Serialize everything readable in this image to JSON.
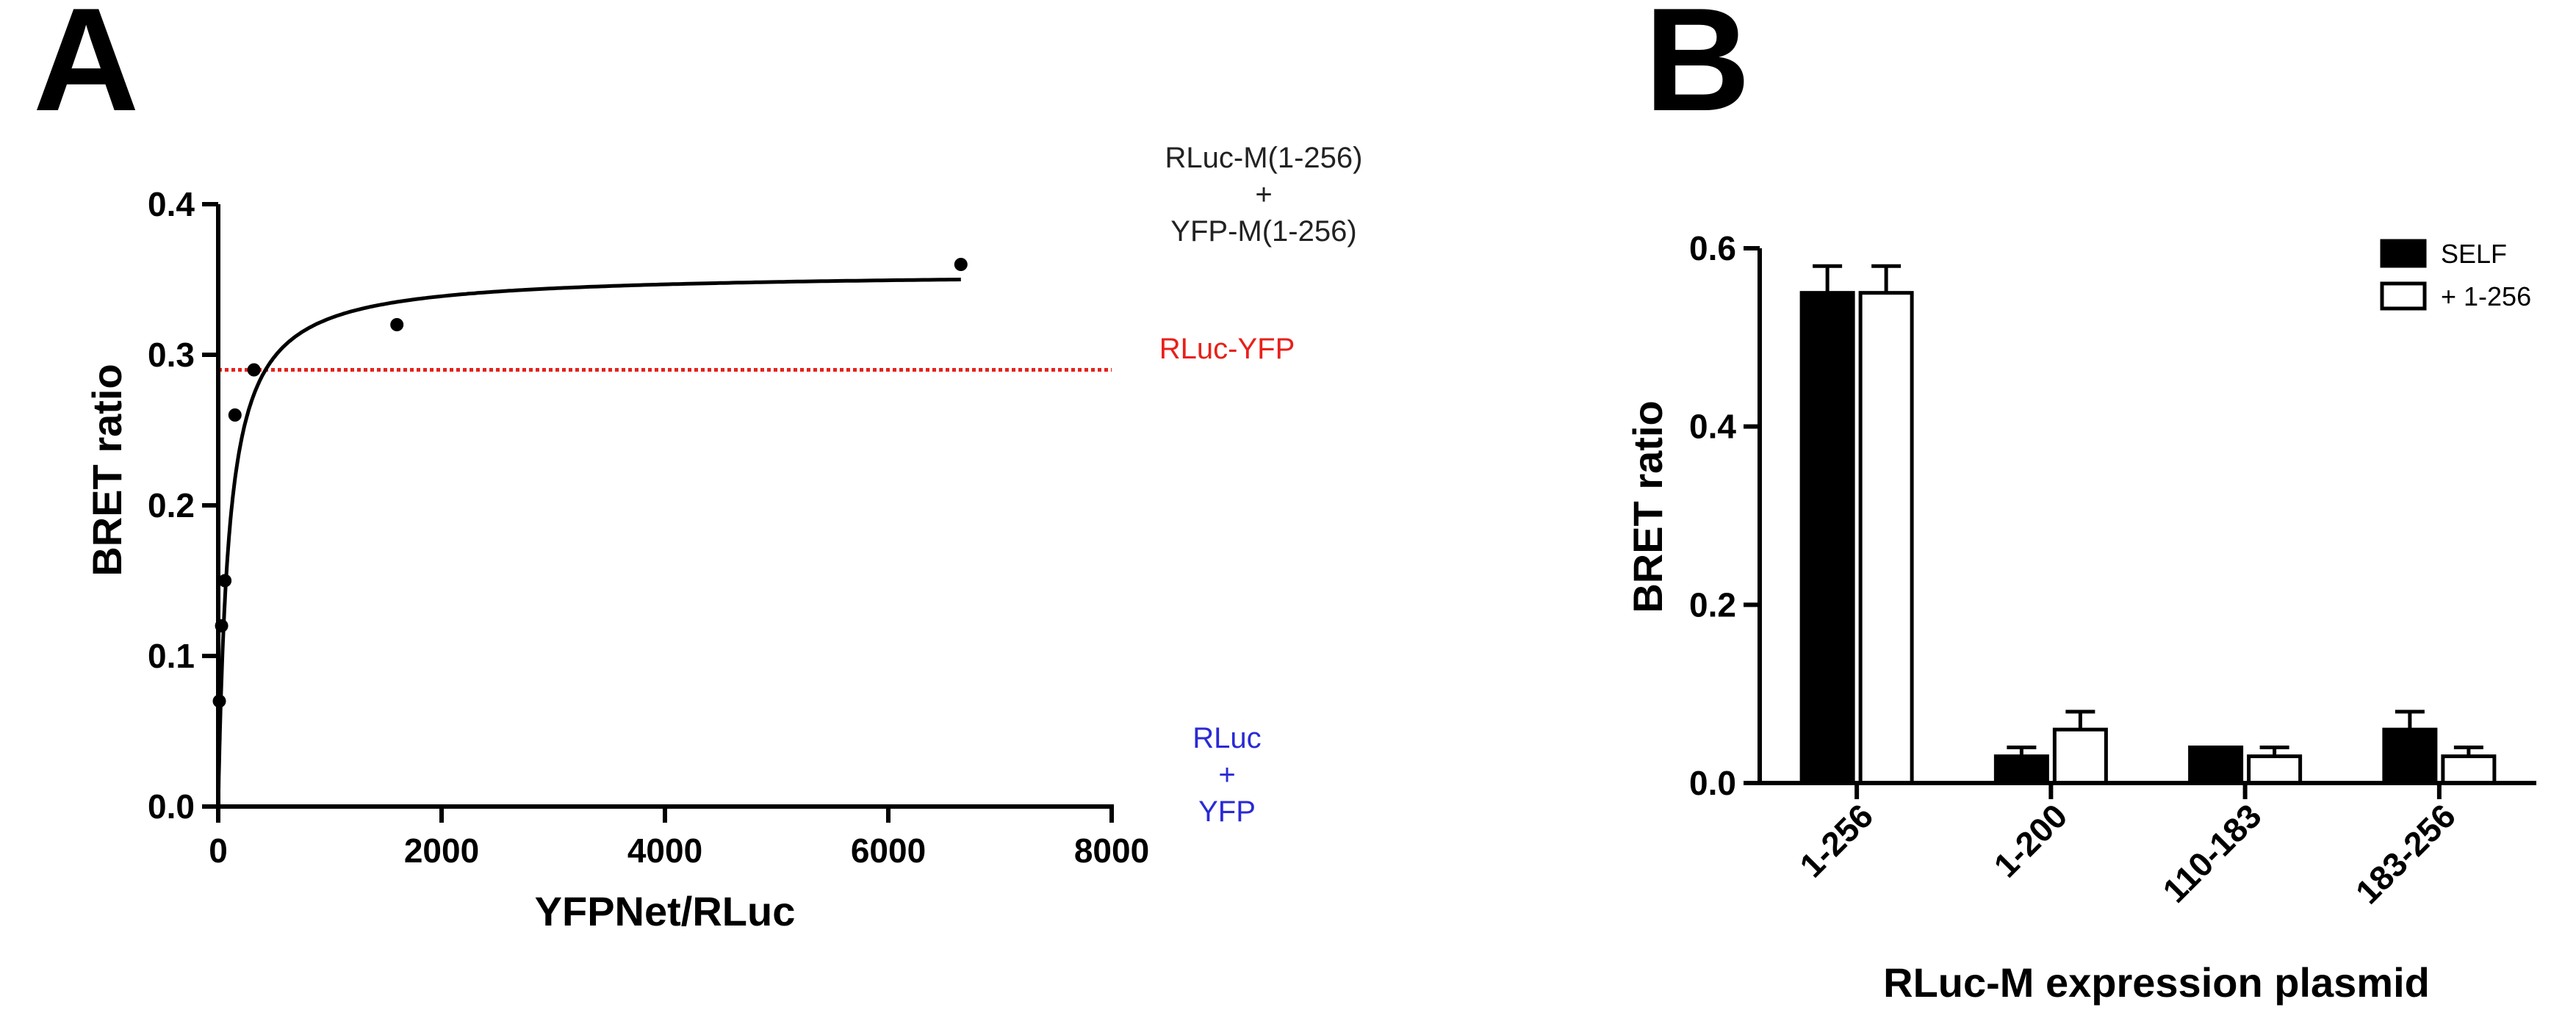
{
  "chart_data": [
    {
      "panel": "A",
      "type": "scatter",
      "xlabel": "YFPNet/RLuc",
      "ylabel": "BRET ratio",
      "xlim": [
        0,
        8000
      ],
      "ylim": [
        0.0,
        0.4
      ],
      "x_ticks": [
        0,
        2000,
        4000,
        6000,
        8000
      ],
      "y_ticks": [
        0.0,
        0.1,
        0.2,
        0.3,
        0.4
      ],
      "x_tick_labels": [
        "0",
        "2000",
        "4000",
        "6000",
        "8000"
      ],
      "y_tick_labels": [
        "0.0",
        "0.1",
        "0.2",
        "0.3",
        "0.4"
      ],
      "points": [
        {
          "x": 10,
          "y": 0.07
        },
        {
          "x": 30,
          "y": 0.12
        },
        {
          "x": 60,
          "y": 0.15
        },
        {
          "x": 150,
          "y": 0.26
        },
        {
          "x": 320,
          "y": 0.29
        },
        {
          "x": 1600,
          "y": 0.32
        },
        {
          "x": 6650,
          "y": 0.36
        }
      ],
      "fit": {
        "model": "hyperbolic",
        "bmax": 0.355,
        "kd": 95,
        "x_range": [
          0,
          6650
        ]
      },
      "reference_lines": [
        {
          "name": "RLuc-YFP",
          "y": 0.29,
          "color": "#e8201a",
          "style": "dotted"
        },
        {
          "name": "RLuc + YFP",
          "y": 0.0,
          "color": "#2a2ad6",
          "style": "dotted"
        }
      ],
      "annotations": [
        {
          "lines": [
            "RLuc-M(1-256)",
            "+",
            "YFP-M(1-256)"
          ],
          "color": "#222222"
        },
        {
          "lines": [
            "RLuc-YFP"
          ],
          "color": "#e8201a"
        },
        {
          "lines": [
            "RLuc",
            "+",
            "YFP"
          ],
          "color": "#2a2ad6"
        }
      ]
    },
    {
      "panel": "B",
      "type": "bar",
      "xlabel": "RLuc-M expression plasmid",
      "ylabel": "BRET ratio",
      "ylim": [
        0.0,
        0.6
      ],
      "y_ticks": [
        0.0,
        0.2,
        0.4,
        0.6
      ],
      "y_tick_labels": [
        "0.0",
        "0.2",
        "0.4",
        "0.6"
      ],
      "categories": [
        "1-256",
        "1-200",
        "110-183",
        "183-256"
      ],
      "series": [
        {
          "name": "SELF",
          "color": "#000000",
          "fill": "#000000",
          "values": [
            0.55,
            0.03,
            0.04,
            0.06
          ],
          "errors": [
            0.03,
            0.01,
            0.0,
            0.02
          ]
        },
        {
          "name": "+ 1-256",
          "color": "#000000",
          "fill": "#ffffff",
          "values": [
            0.55,
            0.06,
            0.03,
            0.03
          ],
          "errors": [
            0.03,
            0.02,
            0.01,
            0.01
          ]
        }
      ],
      "legend_position": "top-right"
    }
  ]
}
